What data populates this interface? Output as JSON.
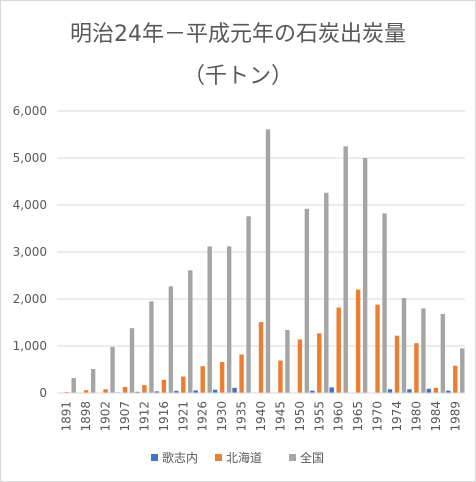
{
  "chart_data": {
    "type": "bar",
    "title": "明治24年－平成元年の石炭出炭量",
    "subtitle": "（千トン）",
    "xlabel": "",
    "ylabel": "",
    "ylim": [
      0,
      6000
    ],
    "yticks": [
      "0",
      "1,000",
      "2,000",
      "3,000",
      "4,000",
      "5,000",
      "6,000"
    ],
    "grid": "horizontal",
    "legend_position": "bottom",
    "categories": [
      "1891",
      "1898",
      "1902",
      "1907",
      "1912",
      "1916",
      "1921",
      "1926",
      "1930",
      "1935",
      "1940",
      "1945",
      "1950",
      "1955",
      "1960",
      "1965",
      "1970",
      "1974",
      "1980",
      "1984",
      "1989"
    ],
    "series": [
      {
        "name": "歌志内",
        "color": "#4472C4",
        "values": [
          0,
          5,
          10,
          15,
          25,
          35,
          45,
          55,
          70,
          110,
          0,
          0,
          0,
          50,
          120,
          0,
          0,
          80,
          80,
          90,
          50
        ]
      },
      {
        "name": "北海道",
        "color": "#ED7D31",
        "values": [
          20,
          60,
          80,
          130,
          170,
          280,
          350,
          570,
          660,
          820,
          1510,
          690,
          1140,
          1270,
          1820,
          2200,
          1880,
          1220,
          1060,
          110,
          580
        ]
      },
      {
        "name": "全国",
        "color": "#A5A5A5",
        "values": [
          320,
          510,
          980,
          1380,
          1950,
          2270,
          2610,
          3120,
          3120,
          3760,
          5610,
          1340,
          3920,
          4260,
          5250,
          5000,
          3820,
          2020,
          1800,
          1680,
          950
        ]
      }
    ]
  }
}
